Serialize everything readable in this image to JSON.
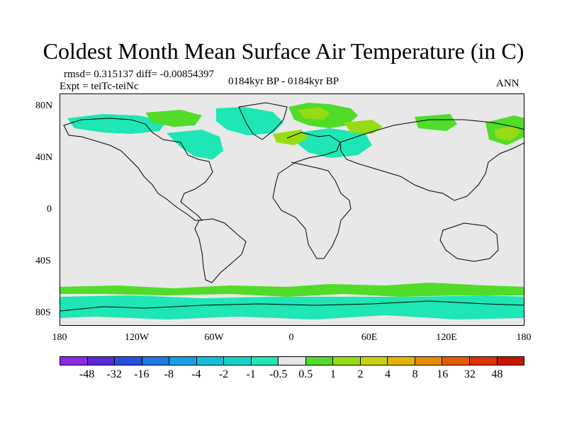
{
  "title": "Coldest Month Mean Surface Air Temperature (in C)",
  "stats": {
    "rmsd_line": "rmsd= 0.315137 diff= -0.00854397",
    "expt_line": "Expt = teiTc-teiNc"
  },
  "period_label": "0184kyr BP - 0184kyr BP",
  "season_label": "ANN",
  "lat_ticks": [
    "80N",
    "40N",
    "0",
    "40S",
    "80S"
  ],
  "lon_ticks": [
    "180",
    "120W",
    "60W",
    "0",
    "60E",
    "120E",
    "180"
  ],
  "colorbar": {
    "labels": [
      "-48",
      "-32",
      "-16",
      "-8",
      "-4",
      "-2",
      "-1",
      "-0.5",
      "0.5",
      "1",
      "2",
      "4",
      "8",
      "16",
      "32",
      "48"
    ],
    "colors": [
      "#8a2be2",
      "#5a28d8",
      "#2850e0",
      "#1e78e6",
      "#14a0e6",
      "#14bed8",
      "#14d2c8",
      "#1ee6b4",
      "#e6e6e6",
      "#50dc28",
      "#96dc14",
      "#c8d20a",
      "#e6b400",
      "#e68c00",
      "#e65a00",
      "#dc3200",
      "#c81400"
    ]
  }
}
